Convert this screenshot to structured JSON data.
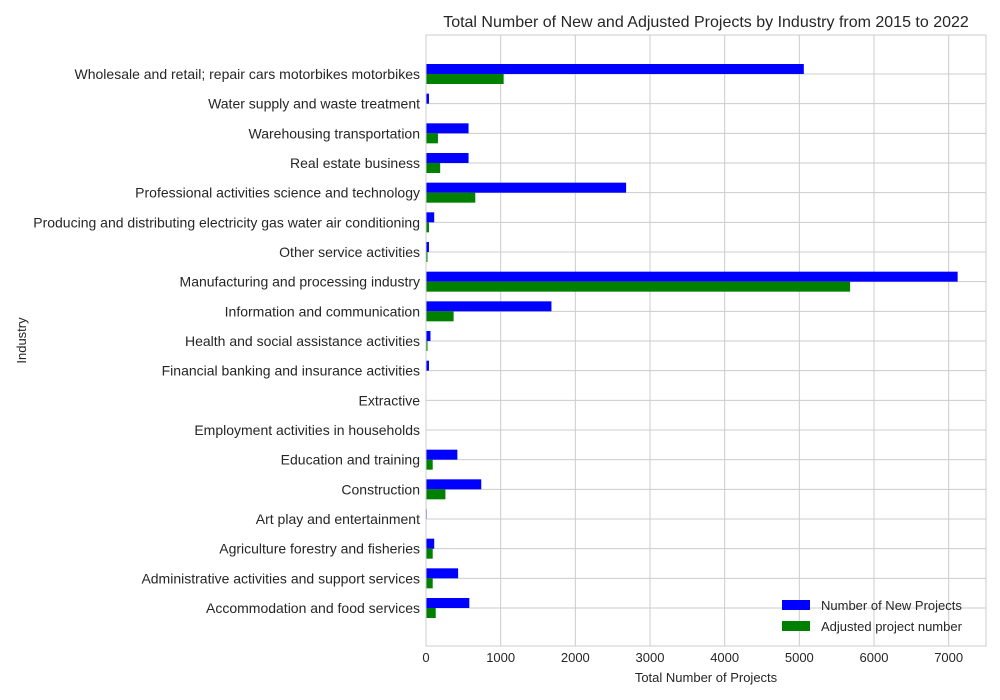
{
  "chart_data": {
    "type": "bar",
    "orientation": "horizontal",
    "title": "Total Number of New and Adjusted Projects by Industry from 2015 to 2022",
    "xlabel": "Total Number of Projects",
    "ylabel": "Industry",
    "xlim": [
      0,
      7500
    ],
    "xticks": [
      0,
      1000,
      2000,
      3000,
      4000,
      5000,
      6000,
      7000
    ],
    "grid": true,
    "legend_position": "lower-right",
    "categories": [
      "Wholesale and retail; repair cars motorbikes motorbikes",
      "Water supply and waste treatment",
      "Warehousing transportation",
      "Real estate business",
      "Professional activities science and technology",
      "Producing and distributing electricity gas water air conditioning",
      "Other service activities",
      "Manufacturing and processing industry",
      "Information and communication",
      "Health and social assistance activities",
      "Financial banking and insurance activities",
      "Extractive",
      "Employment activities in households",
      "Education and training",
      "Construction",
      "Art play and entertainment",
      "Agriculture forestry and fisheries",
      "Administrative activities and support services",
      "Accommodation and food services"
    ],
    "series": [
      {
        "name": "Number of New Projects",
        "color": "#0000ff",
        "values": [
          5060,
          40,
          570,
          570,
          2680,
          110,
          40,
          7120,
          1680,
          60,
          40,
          0,
          0,
          420,
          740,
          10,
          110,
          430,
          580
        ]
      },
      {
        "name": "Adjusted project number",
        "color": "#008000",
        "values": [
          1040,
          5,
          160,
          190,
          660,
          40,
          20,
          5680,
          370,
          20,
          0,
          0,
          0,
          90,
          260,
          5,
          90,
          90,
          130
        ]
      }
    ]
  }
}
